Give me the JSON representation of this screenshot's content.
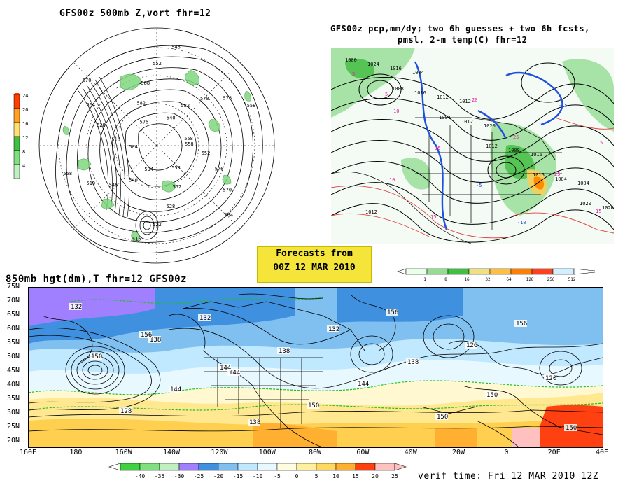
{
  "panel_500mb": {
    "title": "GFS00z   500mb  Z,vort     fhr=12",
    "colorbar_values": [
      "24",
      "20",
      "16",
      "12",
      "8",
      "4"
    ],
    "colorbar_colors": [
      "#ff4000",
      "#ffa020",
      "#ffe070",
      "#40c040",
      "#80e080",
      "#c0f0c0"
    ],
    "contour_labels": [
      "558",
      "552",
      "576",
      "570",
      "564",
      "558",
      "552",
      "528",
      "522",
      "516",
      "534",
      "540",
      "546",
      "510",
      "558",
      "504",
      "516",
      "528",
      "564",
      "570",
      "576",
      "582",
      "588",
      "552",
      "546",
      "540",
      "582",
      "570",
      "576",
      "558",
      "558"
    ]
  },
  "panel_precip": {
    "title_line1": "GFS00z pcp,mm/dy; two 6h guesses + two 6h fcsts,",
    "title_line2": "pmsl, 2-m temp(C)  fhr=12",
    "isobar_labels": [
      "1000",
      "1008",
      "1004",
      "1012",
      "1016",
      "1020",
      "1024",
      "1016",
      "1012",
      "1008",
      "1004",
      "1020",
      "1016",
      "1012",
      "1020",
      "1016",
      "1004",
      "1012",
      "1004",
      "1012"
    ],
    "temp_labels": [
      "5",
      "10",
      "15",
      "-5",
      "-10",
      "-15",
      "5",
      "10",
      "15",
      "20",
      "25",
      "25",
      "15",
      "5"
    ],
    "colorbar_values": [
      "1",
      "8",
      "16",
      "32",
      "64",
      "128",
      "256",
      "512"
    ],
    "colorbar_colors": [
      "#e8ffe8",
      "#90e090",
      "#40c040",
      "#f0e080",
      "#ffc040",
      "#ff8000",
      "#ff4020",
      "#d0f0ff"
    ]
  },
  "info_box": {
    "line1": "Forecasts from",
    "line2": "00Z 12 MAR 2010"
  },
  "panel_850mb": {
    "title": "850mb hgt(dm),T  fhr=12 GFS00z",
    "lat_labels": [
      "75N",
      "70N",
      "65N",
      "60N",
      "55N",
      "50N",
      "45N",
      "40N",
      "35N",
      "30N",
      "25N",
      "20N"
    ],
    "lon_labels": [
      "160E",
      "180",
      "160W",
      "140W",
      "120W",
      "100W",
      "80W",
      "60W",
      "40W",
      "20W",
      "0",
      "20E",
      "40E"
    ],
    "height_labels": [
      "132",
      "138",
      "144",
      "150",
      "156",
      "126",
      "120",
      "128",
      "132",
      "138",
      "144",
      "150",
      "156",
      "150",
      "144",
      "138",
      "132",
      "138",
      "150",
      "150",
      "156",
      "144"
    ],
    "colorbar_values": [
      "-40",
      "-35",
      "-30",
      "-25",
      "-20",
      "-15",
      "-10",
      "-5",
      "0",
      "5",
      "10",
      "15",
      "20",
      "25"
    ],
    "colorbar_colors": [
      "#40d040",
      "#80e080",
      "#c0f0c0",
      "#a080ff",
      "#4090e0",
      "#80c0f0",
      "#c0e8ff",
      "#e8f8ff",
      "#fffde0",
      "#fff0a0",
      "#ffd860",
      "#ffb030",
      "#ff4010",
      "#ffc0c0"
    ],
    "verif_time": "verif time: Fri 12 MAR 2010 12Z"
  }
}
